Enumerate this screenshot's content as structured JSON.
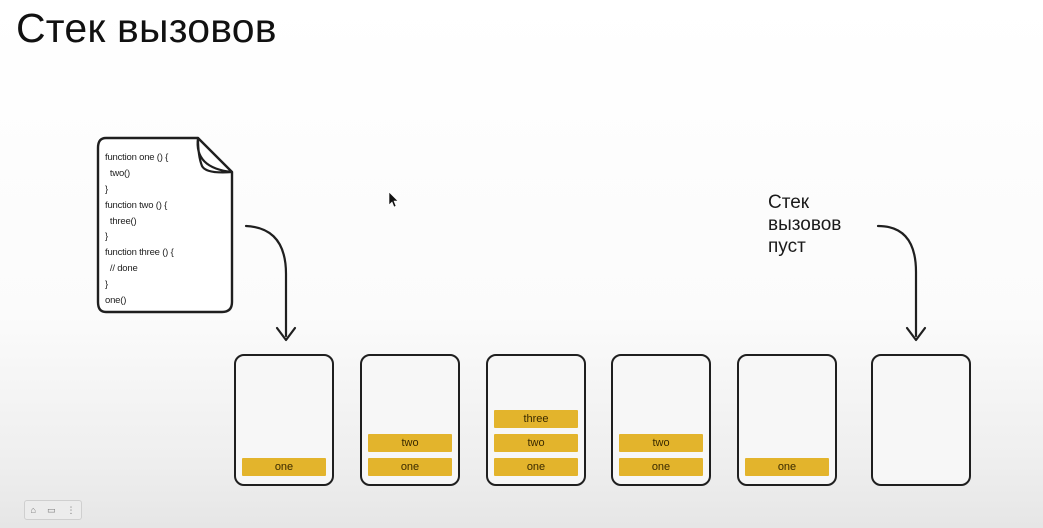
{
  "title": "Стек вызовов",
  "code": [
    "function one () {",
    "  two()",
    "}",
    "function two () {",
    "  three()",
    "}",
    "function three () {",
    "  // done",
    "}",
    "one()"
  ],
  "empty_label": [
    "Стек",
    "вызовов",
    "пуст"
  ],
  "stacks": [
    {
      "frames": [
        "one"
      ]
    },
    {
      "frames": [
        "one",
        "two"
      ]
    },
    {
      "frames": [
        "one",
        "two",
        "three"
      ]
    },
    {
      "frames": [
        "one",
        "two"
      ]
    },
    {
      "frames": [
        "one"
      ]
    },
    {
      "frames": []
    }
  ],
  "colors": {
    "frame": "#e3b42c",
    "outline": "#1f1f1f"
  },
  "controls": {
    "icons": [
      "bookmark-icon",
      "captions-icon",
      "more-icon"
    ],
    "glyphs": [
      "⌂",
      "▭",
      "⋮"
    ]
  }
}
